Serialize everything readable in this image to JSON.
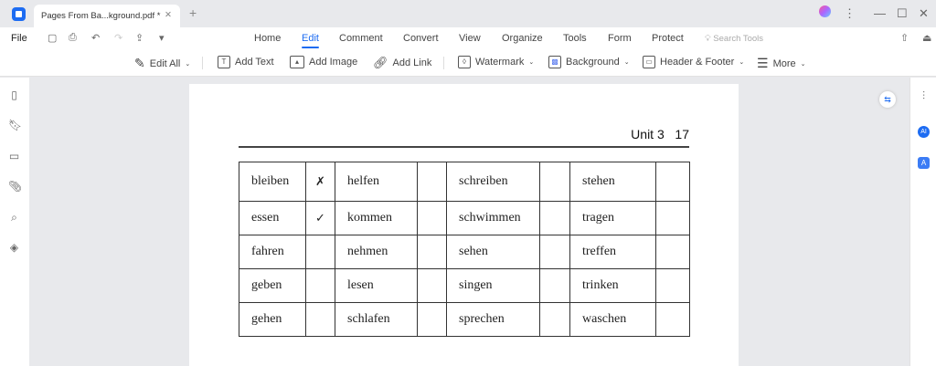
{
  "tab": {
    "title": "Pages From Ba...kground.pdf *"
  },
  "menu": {
    "file": "File",
    "items": [
      "Home",
      "Edit",
      "Comment",
      "Convert",
      "View",
      "Organize",
      "Tools",
      "Form",
      "Protect"
    ],
    "active": "Edit",
    "search_placeholder": "Search Tools"
  },
  "toolbar": {
    "edit_all": "Edit All",
    "add_text": "Add Text",
    "add_image": "Add Image",
    "add_link": "Add Link",
    "watermark": "Watermark",
    "background": "Background",
    "header_footer": "Header & Footer",
    "more": "More"
  },
  "document": {
    "header": "Unit 3   17",
    "rows": [
      [
        "bleiben",
        "✗",
        "helfen",
        "",
        "schreiben",
        "",
        "stehen",
        ""
      ],
      [
        "essen",
        "✓",
        "kommen",
        "",
        "schwimmen",
        "",
        "tragen",
        ""
      ],
      [
        "fahren",
        "",
        "nehmen",
        "",
        "sehen",
        "",
        "treffen",
        ""
      ],
      [
        "geben",
        "",
        "lesen",
        "",
        "singen",
        "",
        "trinken",
        ""
      ],
      [
        "gehen",
        "",
        "schlafen",
        "",
        "sprechen",
        "",
        "waschen",
        ""
      ]
    ]
  },
  "colors": {
    "accent": "#1d6cf2"
  }
}
